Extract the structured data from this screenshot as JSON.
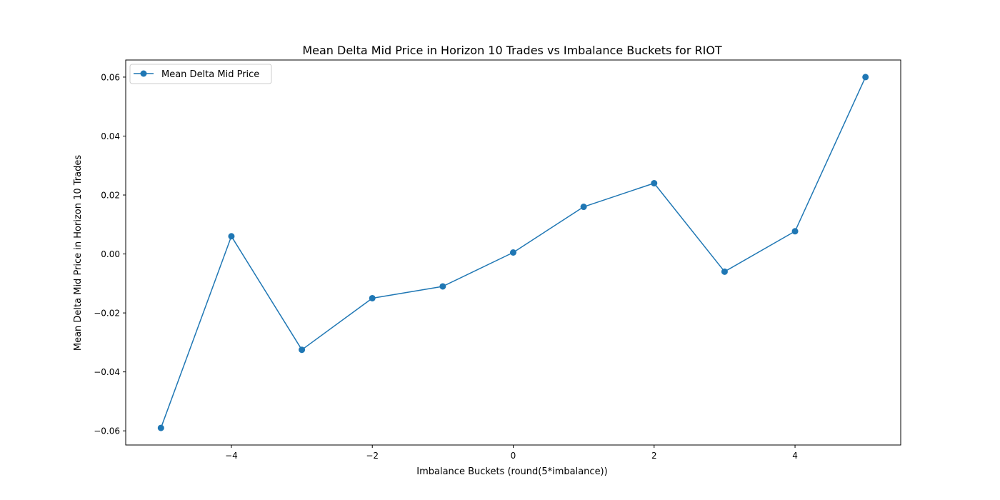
{
  "chart_data": {
    "type": "line",
    "title": "Mean Delta Mid Price in Horizon 10 Trades vs Imbalance Buckets for RIOT",
    "xlabel": "Imbalance Buckets (round(5*imbalance))",
    "ylabel": "Mean Delta Mid Price in Horizon 10 Trades",
    "x": [
      -5,
      -4,
      -3,
      -2,
      -1,
      0,
      1,
      2,
      3,
      4,
      5
    ],
    "series": [
      {
        "name": "Mean Delta Mid Price",
        "color": "#1f77b4",
        "marker": "circle",
        "values": [
          -0.059,
          0.006,
          -0.0325,
          -0.015,
          -0.011,
          0.0005,
          0.016,
          0.024,
          -0.006,
          0.0077,
          0.06
        ]
      }
    ],
    "xlim": [
      -5.5,
      5.5
    ],
    "ylim": [
      -0.0648,
      0.0658
    ],
    "xticks": [
      -4,
      -2,
      0,
      2,
      4
    ],
    "xtick_labels": [
      "−4",
      "−2",
      "0",
      "2",
      "4"
    ],
    "yticks": [
      -0.06,
      -0.04,
      -0.02,
      0.0,
      0.02,
      0.04,
      0.06
    ],
    "ytick_labels": [
      "−0.06",
      "−0.04",
      "−0.02",
      "0.00",
      "0.02",
      "0.04",
      "0.06"
    ],
    "grid": false,
    "legend_position": "upper left"
  }
}
